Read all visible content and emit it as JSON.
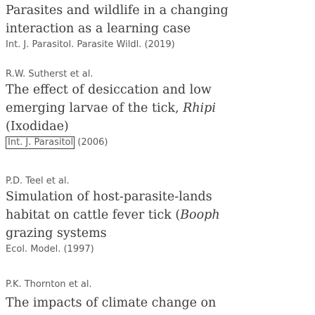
{
  "references": [
    {
      "title_lines": [
        "Parasites and wildlife in a changing",
        "interaction as a learning case"
      ],
      "journal": "Int. J. Parasitol. Parasite Wildl. (2019)"
    },
    {
      "authors": "R.W. Sutherst et al.",
      "title_lines": [
        "The effect of desiccation and low",
        "emerging larvae of the tick, Rhipi",
        "(Ixodidae)"
      ],
      "journal_link": "Int. J. Parasitol",
      "journal_year": "(2006)"
    },
    {
      "authors": "P.D. Teel et al.",
      "title_lines": [
        "Simulation of host-parasite-lands",
        "habitat on cattle fever tick (Booph",
        "grazing systems"
      ],
      "journal": "Ecol. Model. (1997)"
    },
    {
      "authors": "P.K. Thornton et al.",
      "title_lines": [
        "The impacts of climate change on"
      ]
    }
  ]
}
